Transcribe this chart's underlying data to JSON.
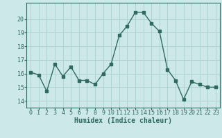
{
  "x": [
    0,
    1,
    2,
    3,
    4,
    5,
    6,
    7,
    8,
    9,
    10,
    11,
    12,
    13,
    14,
    15,
    16,
    17,
    18,
    19,
    20,
    21,
    22,
    23
  ],
  "y": [
    16.1,
    15.9,
    14.7,
    16.7,
    15.8,
    16.5,
    15.5,
    15.5,
    15.2,
    16.0,
    16.7,
    18.8,
    19.5,
    20.5,
    20.5,
    19.7,
    19.1,
    16.3,
    15.5,
    14.1,
    15.4,
    15.2,
    15.0,
    15.0
  ],
  "line_color": "#2e6b5e",
  "marker": "s",
  "markersize": 2.5,
  "linewidth": 1.0,
  "bg_color": "#cce8e8",
  "grid_color": "#aad0d0",
  "tick_color": "#2e6b5e",
  "xlabel": "Humidex (Indice chaleur)",
  "xlabel_fontsize": 7,
  "tick_fontsize": 6,
  "ylim": [
    13.5,
    21.2
  ],
  "yticks": [
    14,
    15,
    16,
    17,
    18,
    19,
    20
  ],
  "xlim": [
    -0.5,
    23.5
  ]
}
